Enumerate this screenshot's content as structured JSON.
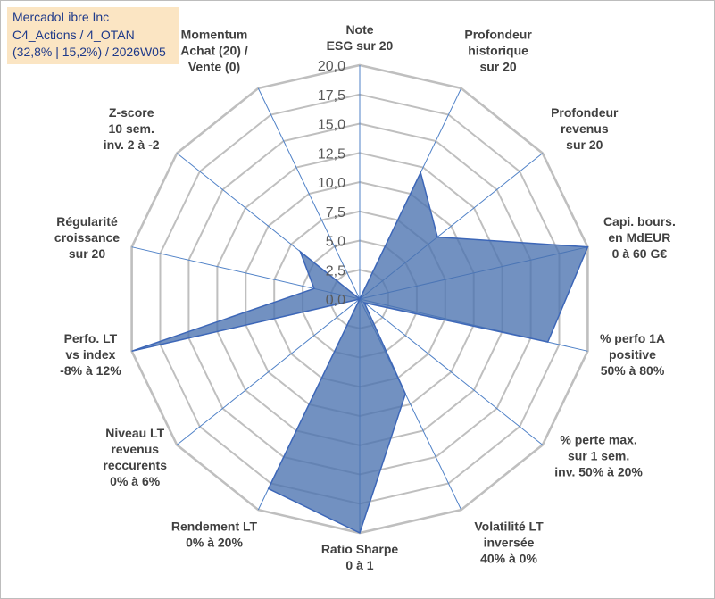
{
  "info": {
    "line1": "MercadoLibre Inc",
    "line2": "C4_Actions / 4_OTAN",
    "line3": "(32,8% | 15,2%) / 2026W05"
  },
  "chart_data": {
    "type": "radar",
    "rlim": [
      0,
      20
    ],
    "radial_ticks": [
      "0,0",
      "2,5",
      "5,0",
      "7,5",
      "10,0",
      "12,5",
      "15,0",
      "17,5",
      "20,0"
    ],
    "axes": [
      [
        "Note",
        "ESG sur 20"
      ],
      [
        "Profondeur",
        "historique",
        "sur 20"
      ],
      [
        "Profondeur",
        "revenus",
        "sur 20"
      ],
      [
        "Capi. bours.",
        "en MdEUR",
        "0 à 60 G€"
      ],
      [
        "% perfo 1A",
        "positive",
        "50% à 80%"
      ],
      [
        "% perte max.",
        "sur 1 sem.",
        "inv. 50% à 20%"
      ],
      [
        "Volatilité LT",
        "inversée",
        "40% à 0%"
      ],
      [
        "Ratio Sharpe",
        "0 à 1"
      ],
      [
        "Rendement LT",
        "0% à 20%"
      ],
      [
        "Niveau LT",
        "revenus",
        "reccurents",
        "0% à 6%"
      ],
      [
        "Perfo. LT",
        "vs index",
        "-8% à 12%"
      ],
      [
        "Régularité",
        "croissance",
        "sur 20"
      ],
      [
        "Z-score",
        "10 sem.",
        "inv. 2 à -2"
      ],
      [
        "Momentum",
        "Achat (20) /",
        "Vente (0)"
      ]
    ],
    "series": [
      {
        "values": [
          0,
          12,
          8.5,
          20,
          16.5,
          0.5,
          9,
          20,
          18,
          0,
          20,
          4,
          6.5,
          0
        ]
      }
    ],
    "colors": {
      "fill": "#4a72b0",
      "stroke": "#3d67b8",
      "grid": "#bfbfbf",
      "spoke": "#4f81c7"
    },
    "grid": true
  }
}
